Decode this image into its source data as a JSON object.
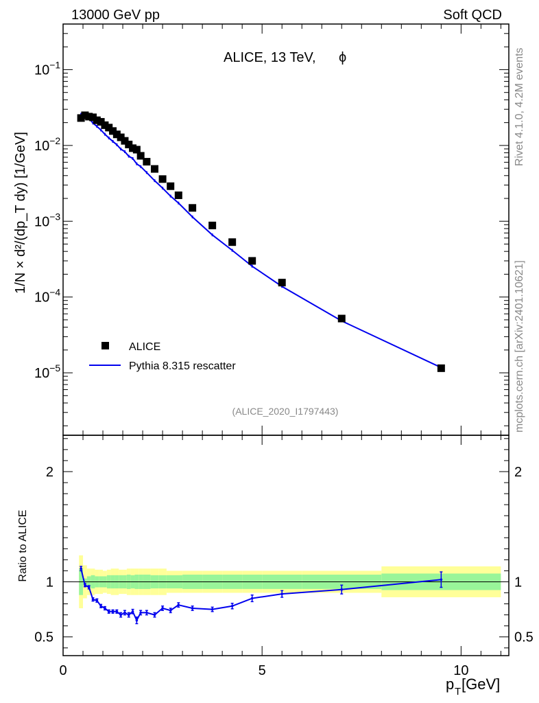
{
  "header": {
    "left": "13000 GeV pp",
    "right": "Soft QCD",
    "title": "ALICE, 13 TeV,",
    "title_symbol": "ϕ"
  },
  "side": {
    "rivet": "Rivet 4.1.0,  4.2M events",
    "source": "mcplots.cern.ch [arXiv:2401.10621]"
  },
  "analysis_id": "(ALICE_2020_I1797443)",
  "axes": {
    "xlabel": "p",
    "xlabel_sub": "T",
    "xlabel_unit": " [GeV]",
    "top_ylabel": "1/N × d²/(dp_T dy) [1/GeV]",
    "ratio_ylabel": "Ratio to ALICE"
  },
  "legend": {
    "data_label": "ALICE",
    "mc_label": "Pythia 8.315 rescatter"
  },
  "colors": {
    "data": "#000000",
    "mc": "#0000ee",
    "band_inner": "#99f599",
    "band_outer": "#ffff99"
  },
  "chart_data": {
    "type": "scatter",
    "xlim": [
      0,
      11.2
    ],
    "ylim_log": [
      1.5e-06,
      0.4
    ],
    "ratio_ylim": [
      0.33,
      2.33
    ],
    "x_ticks": [
      0,
      5,
      10
    ],
    "y_ticks": [
      {
        "value": 1e-05,
        "base": "10",
        "exp": "−5"
      },
      {
        "value": 0.0001,
        "base": "10",
        "exp": "−4"
      },
      {
        "value": 0.001,
        "base": "10",
        "exp": "−3"
      },
      {
        "value": 0.01,
        "base": "10",
        "exp": "−2"
      },
      {
        "value": 0.1,
        "base": "10",
        "exp": "−1"
      }
    ],
    "ratio_ticks": [
      0.5,
      1,
      2
    ],
    "x": [
      0.45,
      0.55,
      0.65,
      0.75,
      0.85,
      0.95,
      1.05,
      1.15,
      1.25,
      1.35,
      1.45,
      1.55,
      1.65,
      1.75,
      1.85,
      1.95,
      2.1,
      2.3,
      2.5,
      2.7,
      2.9,
      3.25,
      3.75,
      4.25,
      4.75,
      5.5,
      7.0,
      9.5
    ],
    "data_values": [
      0.023,
      0.025,
      0.024,
      0.0235,
      0.0215,
      0.0205,
      0.0185,
      0.0172,
      0.0155,
      0.014,
      0.0128,
      0.0115,
      0.0103,
      0.0092,
      0.0088,
      0.0073,
      0.0061,
      0.0049,
      0.0036,
      0.0029,
      0.0022,
      0.0015,
      0.00088,
      0.00053,
      0.0003,
      0.000155,
      5.2e-05,
      1.15e-05
    ],
    "mc_ratio": [
      1.12,
      0.97,
      0.95,
      0.84,
      0.83,
      0.78,
      0.76,
      0.73,
      0.73,
      0.73,
      0.7,
      0.72,
      0.7,
      0.73,
      0.65,
      0.72,
      0.72,
      0.7,
      0.76,
      0.74,
      0.79,
      0.76,
      0.75,
      0.78,
      0.85,
      0.89,
      0.93,
      1.02
    ],
    "mc_ratio_err": [
      0.02,
      0.015,
      0.015,
      0.015,
      0.015,
      0.015,
      0.015,
      0.015,
      0.015,
      0.015,
      0.02,
      0.02,
      0.02,
      0.02,
      0.03,
      0.02,
      0.02,
      0.02,
      0.02,
      0.02,
      0.02,
      0.02,
      0.02,
      0.025,
      0.03,
      0.03,
      0.04,
      0.07
    ],
    "band_edges": [
      0.4,
      0.5,
      0.6,
      0.7,
      0.8,
      0.9,
      1.0,
      1.1,
      1.2,
      1.3,
      1.4,
      1.5,
      1.6,
      1.7,
      1.8,
      1.9,
      2.0,
      2.2,
      2.4,
      2.6,
      2.8,
      3.0,
      3.5,
      4.0,
      4.5,
      5.0,
      6.0,
      8.0,
      11.0
    ],
    "band_inner": [
      0.12,
      0.03,
      0.05,
      0.06,
      0.05,
      0.05,
      0.05,
      0.06,
      0.06,
      0.06,
      0.06,
      0.06,
      0.065,
      0.06,
      0.065,
      0.065,
      0.065,
      0.06,
      0.06,
      0.06,
      0.06,
      0.065,
      0.065,
      0.065,
      0.065,
      0.065,
      0.065,
      0.075
    ],
    "band_outer": [
      0.24,
      0.15,
      0.12,
      0.12,
      0.11,
      0.11,
      0.1,
      0.11,
      0.12,
      0.12,
      0.11,
      0.11,
      0.12,
      0.12,
      0.12,
      0.12,
      0.12,
      0.12,
      0.12,
      0.1,
      0.1,
      0.1,
      0.1,
      0.1,
      0.1,
      0.1,
      0.1,
      0.14
    ]
  }
}
